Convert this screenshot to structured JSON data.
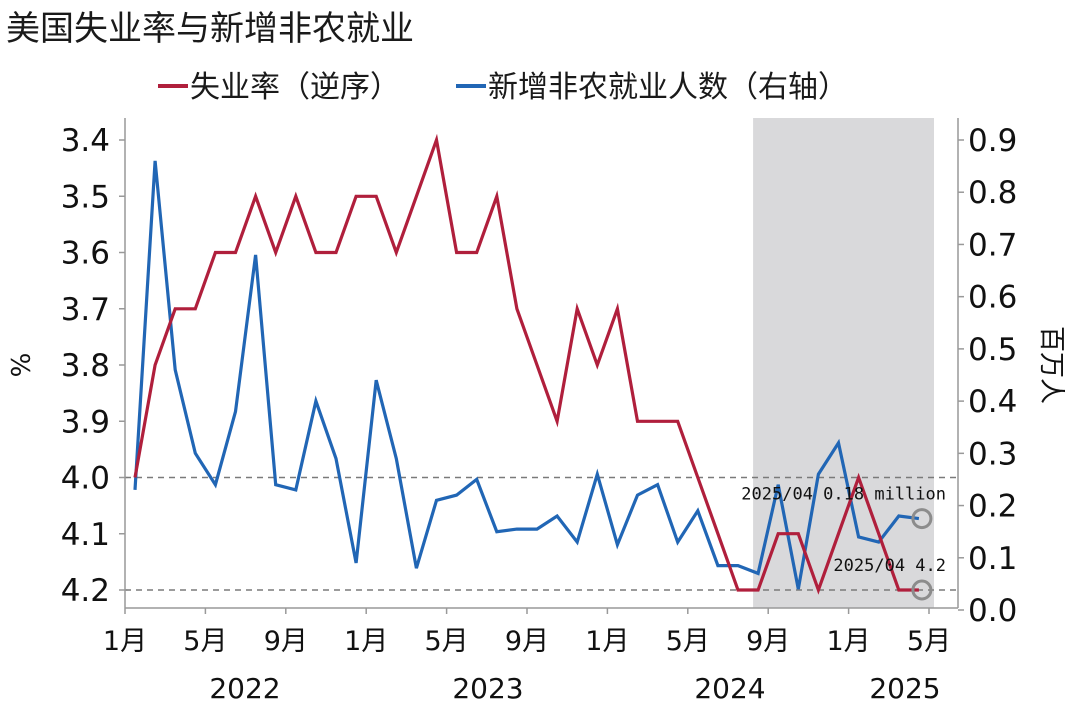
{
  "chart_data": {
    "type": "line",
    "title": "美国失业率与新增非农就业",
    "legend_position": "top",
    "x": [
      "2022-01",
      "2022-02",
      "2022-03",
      "2022-04",
      "2022-05",
      "2022-06",
      "2022-07",
      "2022-08",
      "2022-09",
      "2022-10",
      "2022-11",
      "2022-12",
      "2023-01",
      "2023-02",
      "2023-03",
      "2023-04",
      "2023-05",
      "2023-06",
      "2023-07",
      "2023-08",
      "2023-09",
      "2023-10",
      "2023-11",
      "2023-12",
      "2024-01",
      "2024-02",
      "2024-03",
      "2024-04",
      "2024-05",
      "2024-06",
      "2024-07",
      "2024-08",
      "2024-09",
      "2024-10",
      "2024-11",
      "2024-12",
      "2025-01",
      "2025-02",
      "2025-03",
      "2025-04"
    ],
    "x_tick_labels": [
      "1月",
      "5月",
      "9月",
      "1月",
      "5月",
      "9月",
      "1月",
      "5月",
      "9月",
      "1月",
      "5月"
    ],
    "year_labels": [
      "2022",
      "2023",
      "2024",
      "2025"
    ],
    "left_axis": {
      "label": "%",
      "inverted": true,
      "ylim": [
        3.4,
        4.2
      ],
      "ticks": [
        "3.4",
        "3.5",
        "3.6",
        "3.7",
        "3.8",
        "3.9",
        "4.0",
        "4.1",
        "4.2"
      ]
    },
    "right_axis": {
      "label": "百万人",
      "ylim": [
        0.0,
        0.9
      ],
      "ticks": [
        "0.0",
        "0.1",
        "0.2",
        "0.3",
        "0.4",
        "0.5",
        "0.6",
        "0.7",
        "0.8",
        "0.9"
      ]
    },
    "series": [
      {
        "name": "失业率（逆序）",
        "axis": "left",
        "color": "#b01f3c",
        "values": [
          4.0,
          3.8,
          3.7,
          3.7,
          3.6,
          3.6,
          3.5,
          3.6,
          3.5,
          3.6,
          3.6,
          3.5,
          3.5,
          3.6,
          3.5,
          3.4,
          3.6,
          3.6,
          3.5,
          3.7,
          3.8,
          3.9,
          3.7,
          3.8,
          3.7,
          3.9,
          3.9,
          3.9,
          4.0,
          4.1,
          4.2,
          4.2,
          4.1,
          4.1,
          4.2,
          4.1,
          4.0,
          4.1,
          4.2,
          4.2
        ]
      },
      {
        "name": "新增非农就业人数（右轴）",
        "axis": "right",
        "color": "#2166b5",
        "values": [
          0.23,
          0.86,
          0.46,
          0.3,
          0.24,
          0.38,
          0.68,
          0.24,
          0.23,
          0.4,
          0.29,
          0.09,
          0.44,
          0.29,
          0.08,
          0.21,
          0.22,
          0.25,
          0.15,
          0.155,
          0.155,
          0.18,
          0.13,
          0.26,
          0.125,
          0.22,
          0.24,
          0.13,
          0.19,
          0.085,
          0.085,
          0.07,
          0.24,
          0.04,
          0.26,
          0.32,
          0.14,
          0.13,
          0.18,
          0.175
        ]
      }
    ],
    "reference_lines": [
      {
        "axis": "left",
        "value": 4.0,
        "style": "dashed"
      },
      {
        "axis": "left",
        "value": 4.2,
        "style": "dashed"
      }
    ],
    "shaded_region": {
      "from": "2024-08",
      "to": "2025-05",
      "color": "#d9d9db"
    },
    "annotations": [
      {
        "text": "2025/04 0.18 million",
        "series": "新增非农就业人数（右轴）",
        "x": "2025-04",
        "y": 0.175
      },
      {
        "text": "2025/04 4.2",
        "series": "失业率（逆序）",
        "x": "2025-04",
        "y": 4.2
      }
    ]
  }
}
